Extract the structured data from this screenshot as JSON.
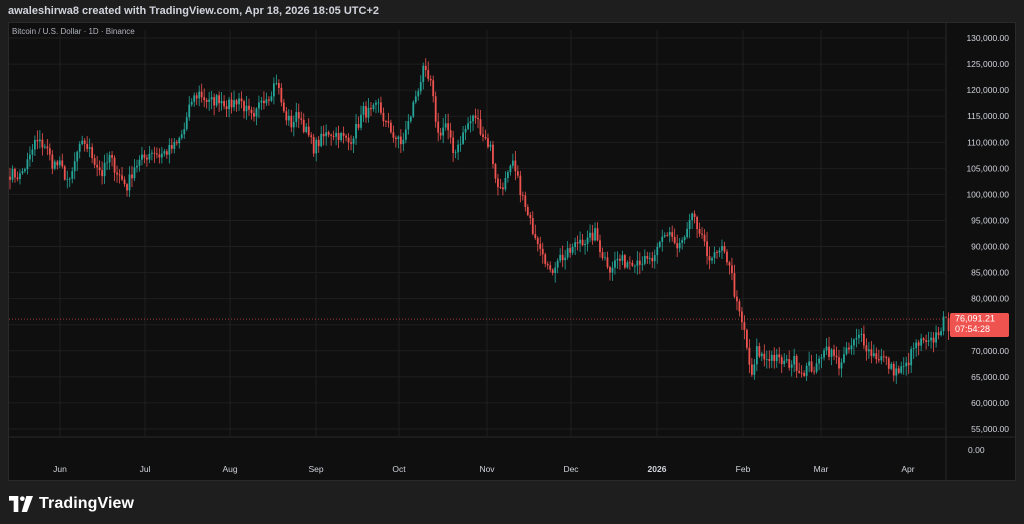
{
  "header": {
    "created_by": "awaleshirwa8 created with TradingView.com, Apr 18, 2026 18:05 UTC+2"
  },
  "brand": {
    "name": "TradingView"
  },
  "colors": {
    "up": "#26a69a",
    "down": "#ef5350",
    "background": "#0f0f0f",
    "grid": "#1f1f1f"
  },
  "chart_data": {
    "type": "candlestick",
    "title": "Bitcoin / U.S. Dollar · 1D · Binance",
    "y_ticks": [
      "130,000.00",
      "125,000.00",
      "120,000.00",
      "115,000.00",
      "110,000.00",
      "105,000.00",
      "100,000.00",
      "95,000.00",
      "90,000.00",
      "85,000.00",
      "80,000.00",
      "75,000.00",
      "70,000.00",
      "65,000.00",
      "60,000.00",
      "55,000.00"
    ],
    "y_zero_label": "0.00",
    "ylim": [
      53000,
      132000
    ],
    "x_ticks": [
      "Jun",
      "Jul",
      "Aug",
      "Sep",
      "Oct",
      "Nov",
      "Dec",
      "2026",
      "Feb",
      "Mar",
      "Apr"
    ],
    "x_tick_bold": "2026",
    "last_price": {
      "price_label": "76,091.21",
      "countdown": "07:54:28",
      "value": 76091.21
    },
    "series": [
      {
        "name": "",
        "anchors": [
          [
            0,
            104000
          ],
          [
            4,
            103500
          ],
          [
            8,
            107000
          ],
          [
            10,
            110000
          ],
          [
            14,
            109500
          ],
          [
            17,
            106000
          ],
          [
            20,
            105500
          ],
          [
            24,
            102000
          ],
          [
            27,
            108000
          ],
          [
            30,
            110000
          ],
          [
            34,
            106500
          ],
          [
            37,
            104000
          ],
          [
            40,
            107000
          ],
          [
            44,
            103500
          ],
          [
            47,
            101500
          ],
          [
            50,
            105500
          ],
          [
            54,
            107000
          ],
          [
            57,
            108500
          ],
          [
            60,
            107500
          ],
          [
            64,
            108500
          ],
          [
            67,
            109500
          ],
          [
            70,
            112500
          ],
          [
            73,
            118000
          ],
          [
            76,
            119500
          ],
          [
            80,
            117500
          ],
          [
            84,
            118500
          ],
          [
            88,
            117000
          ],
          [
            92,
            118500
          ],
          [
            95,
            116000
          ],
          [
            98,
            114000
          ],
          [
            101,
            118500
          ],
          [
            104,
            119000
          ],
          [
            107,
            122000
          ],
          [
            110,
            115500
          ],
          [
            113,
            113500
          ],
          [
            116,
            115500
          ],
          [
            119,
            112000
          ],
          [
            122,
            109000
          ],
          [
            125,
            110500
          ],
          [
            128,
            112000
          ],
          [
            132,
            111500
          ],
          [
            136,
            110000
          ],
          [
            139,
            112500
          ],
          [
            142,
            116000
          ],
          [
            145,
            115500
          ],
          [
            148,
            117000
          ],
          [
            151,
            113500
          ],
          [
            154,
            111500
          ],
          [
            157,
            109500
          ],
          [
            160,
            113500
          ],
          [
            163,
            119000
          ],
          [
            166,
            123500
          ],
          [
            169,
            121000
          ],
          [
            172,
            111500
          ],
          [
            175,
            113500
          ],
          [
            178,
            108000
          ],
          [
            181,
            110500
          ],
          [
            184,
            113500
          ],
          [
            187,
            115000
          ],
          [
            190,
            111500
          ],
          [
            193,
            109000
          ],
          [
            196,
            101000
          ],
          [
            199,
            102500
          ],
          [
            202,
            105500
          ],
          [
            205,
            101000
          ],
          [
            208,
            95500
          ],
          [
            211,
            92500
          ],
          [
            214,
            89500
          ],
          [
            217,
            84500
          ],
          [
            220,
            88000
          ],
          [
            223,
            88000
          ],
          [
            226,
            89500
          ],
          [
            229,
            91500
          ],
          [
            232,
            91000
          ],
          [
            235,
            92500
          ],
          [
            238,
            88500
          ],
          [
            241,
            86000
          ],
          [
            244,
            87500
          ],
          [
            247,
            87000
          ],
          [
            250,
            87500
          ],
          [
            253,
            87500
          ],
          [
            256,
            87000
          ],
          [
            259,
            87500
          ],
          [
            262,
            91500
          ],
          [
            265,
            93000
          ],
          [
            268,
            89500
          ],
          [
            271,
            91500
          ],
          [
            274,
            95500
          ],
          [
            277,
            92500
          ],
          [
            280,
            88500
          ],
          [
            283,
            88000
          ],
          [
            286,
            89000
          ],
          [
            289,
            87000
          ],
          [
            292,
            78500
          ],
          [
            295,
            73500
          ],
          [
            298,
            64500
          ],
          [
            300,
            70000
          ],
          [
            303,
            68500
          ],
          [
            306,
            69000
          ],
          [
            309,
            68000
          ],
          [
            312,
            67500
          ],
          [
            315,
            68000
          ],
          [
            318,
            66000
          ],
          [
            321,
            67000
          ],
          [
            324,
            66500
          ],
          [
            327,
            71000
          ],
          [
            330,
            69500
          ],
          [
            333,
            67500
          ],
          [
            336,
            69500
          ],
          [
            339,
            71500
          ],
          [
            342,
            73000
          ],
          [
            345,
            70000
          ],
          [
            348,
            69000
          ],
          [
            351,
            68500
          ],
          [
            354,
            66500
          ],
          [
            357,
            66000
          ],
          [
            360,
            67000
          ],
          [
            363,
            70500
          ],
          [
            366,
            71500
          ],
          [
            369,
            71000
          ],
          [
            372,
            73000
          ],
          [
            375,
            75500
          ],
          [
            378,
            74500
          ],
          [
            380,
            76091
          ]
        ]
      }
    ]
  }
}
